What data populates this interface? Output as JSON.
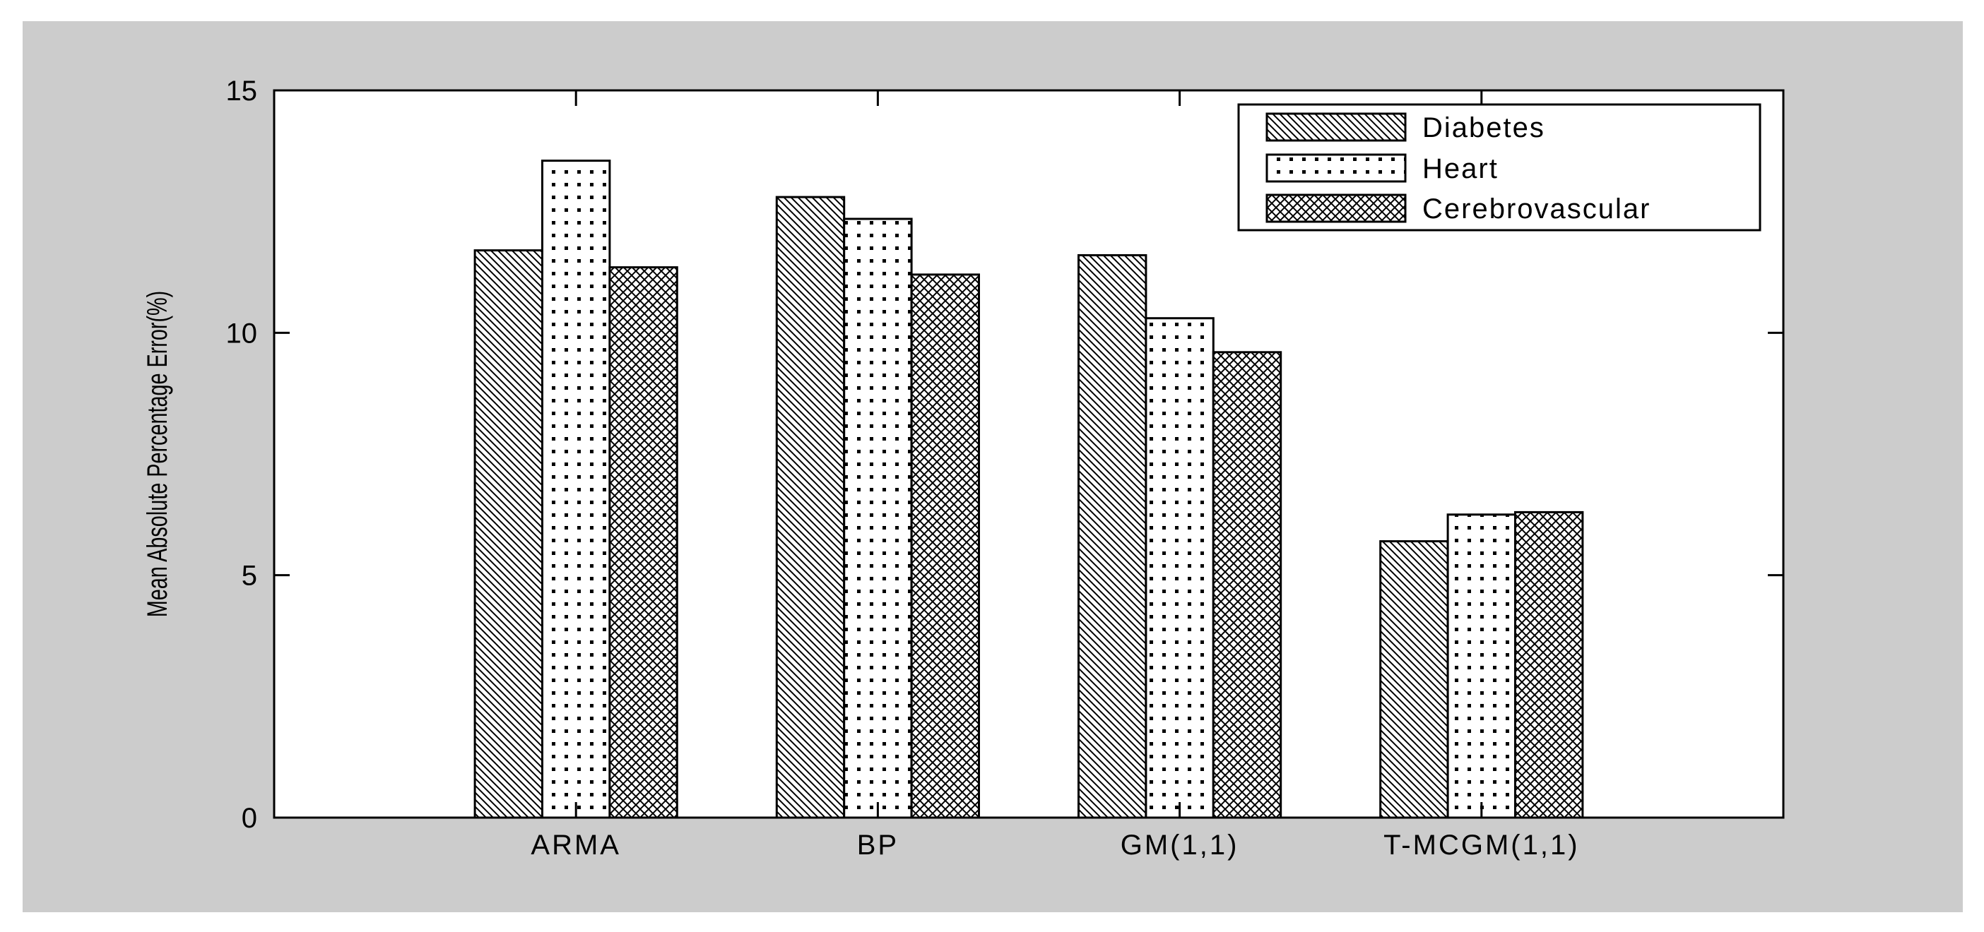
{
  "colors": {
    "figure_background": "#cccccc",
    "plot_background": "#ffffff",
    "ink": "#000000"
  },
  "chart_data": {
    "type": "bar",
    "title": "",
    "xlabel": "",
    "ylabel": "Mean Absolute Percentage Error(%)",
    "categories": [
      "ARMA",
      "BP",
      "GM(1,1)",
      "T-MCGM(1,1)"
    ],
    "series": [
      {
        "name": "Diabetes",
        "pattern": "diagonal-hatch",
        "values": [
          11.7,
          12.8,
          11.6,
          5.7
        ]
      },
      {
        "name": "Heart",
        "pattern": "dots",
        "values": [
          13.55,
          12.35,
          10.3,
          6.25
        ]
      },
      {
        "name": "Cerebrovascular",
        "pattern": "cross-hatch",
        "values": [
          11.35,
          11.2,
          9.6,
          6.3
        ]
      }
    ],
    "ylim": [
      0,
      15
    ],
    "yticks": [
      0,
      5,
      10,
      15
    ],
    "grid": false,
    "legend_position": "top-right"
  }
}
